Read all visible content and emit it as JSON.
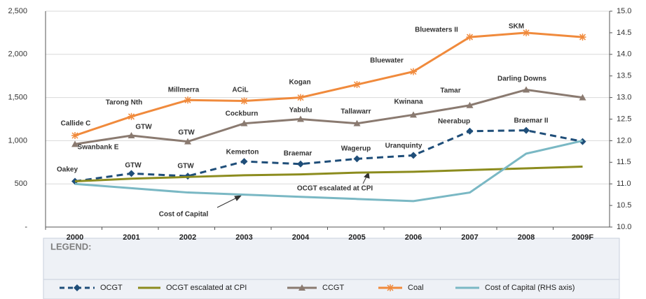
{
  "chart_data": {
    "type": "line",
    "categories": [
      "2000",
      "2001",
      "2002",
      "2003",
      "2004",
      "2005",
      "2006",
      "2007",
      "2008",
      "2009F"
    ],
    "ylim": [
      0,
      2500
    ],
    "yticks": [
      {
        "value": 0,
        "label": "-"
      },
      500,
      {
        "value": 1000,
        "label": "1,000"
      },
      {
        "value": 1500,
        "label": "1,500"
      },
      {
        "value": 2000,
        "label": "2,000"
      },
      {
        "value": 2500,
        "label": "2,500"
      }
    ],
    "y2lim": [
      10,
      15
    ],
    "y2ticks": [
      {
        "value": 10,
        "label": "10.0"
      },
      10.5,
      {
        "value": 11,
        "label": "11.0"
      },
      11.5,
      {
        "value": 12,
        "label": "12.0"
      },
      12.5,
      {
        "value": 13,
        "label": "13.0"
      },
      13.5,
      {
        "value": 14,
        "label": "14.0"
      },
      14.5,
      {
        "value": 15,
        "label": "15.0"
      }
    ],
    "grid": true,
    "legend_title": "LEGEND:",
    "series": [
      {
        "name": "OCGT",
        "color": "#1f4e79",
        "dash": true,
        "marker": "diamond",
        "values": [
          530,
          620,
          590,
          760,
          730,
          790,
          830,
          1110,
          1120,
          990
        ]
      },
      {
        "name": "OCGT escalated at CPI",
        "color": "#8c8c1e",
        "values": [
          530,
          560,
          580,
          600,
          610,
          630,
          640,
          660,
          680,
          700
        ]
      },
      {
        "name": "CCGT",
        "color": "#8a7a70",
        "marker": "triangle",
        "values": [
          960,
          1060,
          990,
          1200,
          1250,
          1200,
          1300,
          1410,
          1590,
          1500
        ]
      },
      {
        "name": "Coal",
        "color": "#f08a3c",
        "marker": "asterisk",
        "values": [
          1060,
          1280,
          1470,
          1460,
          1500,
          1650,
          1800,
          2200,
          2250,
          2200
        ]
      },
      {
        "name": "Cost of Capital (RHS axis)",
        "color": "#7ab8c4",
        "axis": "y2",
        "values": [
          11.0,
          10.9,
          10.8,
          10.75,
          10.7,
          10.65,
          10.6,
          10.8,
          11.7,
          12.0
        ]
      }
    ],
    "annotations": [
      "Callide C",
      "Tarong Nth",
      "Millmerra",
      "ACiL",
      "Kogan",
      "Bluewater",
      "Bluewaters II",
      "SKM",
      "Swanbank E",
      "GTW",
      "GTW",
      "Cockburn",
      "Yabulu",
      "Tallawarr",
      "Kwinana",
      "Tamar",
      "Darling Downs",
      "Oakey",
      "GTW",
      "GTW",
      "Kemerton",
      "Braemar",
      "Wagerup",
      "Uranquinty",
      "Neerabup",
      "Braemar II",
      "OCGT escalated at CPI",
      "Cost of Capital"
    ]
  }
}
